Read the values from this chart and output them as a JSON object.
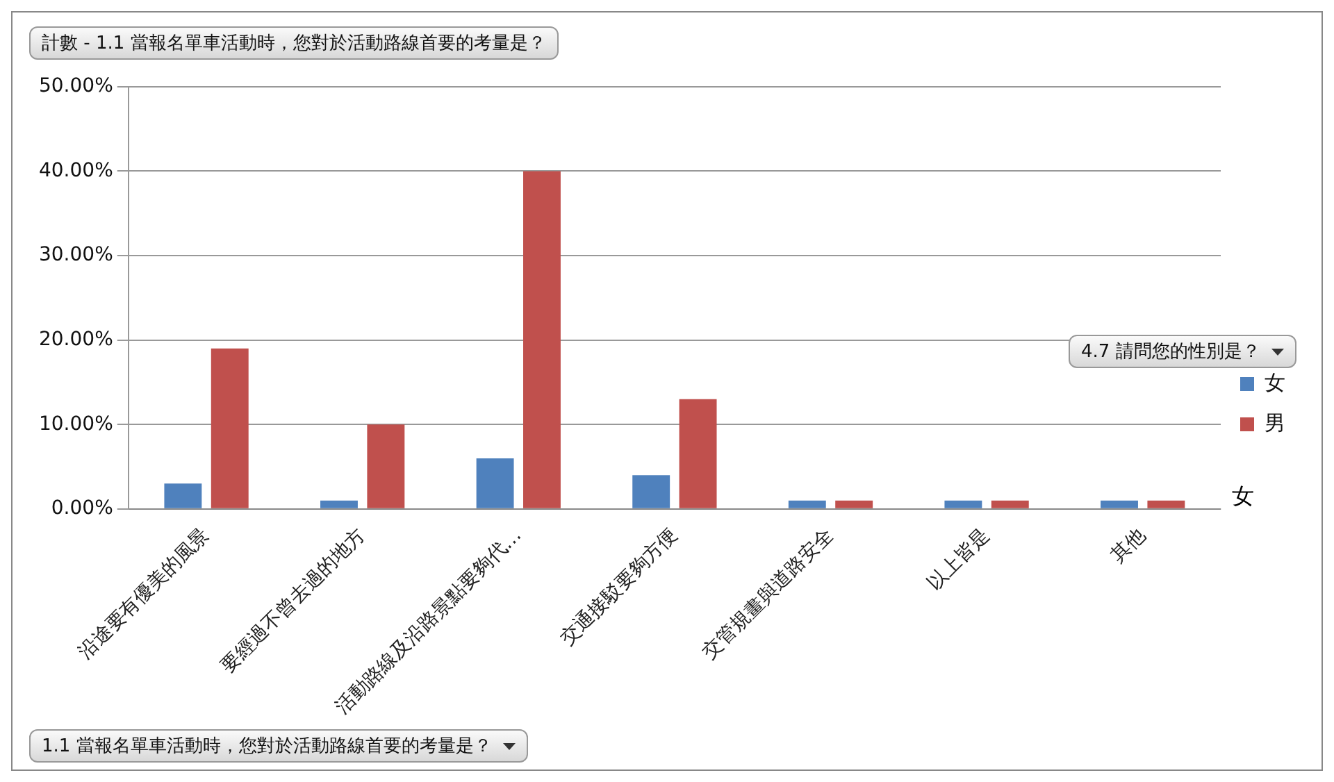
{
  "chart_data": {
    "type": "bar",
    "title": "計數 - 1.1 當報名單車活動時，您對於活動路線首要的考量是？",
    "xlabel": "1.1 當報名單車活動時，您對於活動路線首要的考量是？",
    "legend_title": "4.7 請問您的性別是？",
    "categories": [
      "沿途要有優美的風景",
      "要經過不曾去過的地方",
      "活動路線及沿路景點要夠代…",
      "交通接駁要夠方便",
      "交管規畫與道路安全",
      "以上皆是",
      "其他"
    ],
    "series": [
      {
        "name": "女",
        "color": "#4f81bd",
        "values": [
          3,
          1,
          6,
          4,
          1,
          1,
          1
        ]
      },
      {
        "name": "男",
        "color": "#c0504d",
        "values": [
          19,
          10,
          40,
          13,
          1,
          1,
          1
        ]
      }
    ],
    "ylim": [
      0,
      50
    ],
    "yticks": [
      {
        "value": 0,
        "label": "0.00%"
      },
      {
        "value": 10,
        "label": "10.00%"
      },
      {
        "value": 20,
        "label": "20.00%"
      },
      {
        "value": 30,
        "label": "30.00%"
      },
      {
        "value": 40,
        "label": "40.00%"
      },
      {
        "value": 50,
        "label": "50.00%"
      }
    ],
    "grid": "y",
    "legend": "right",
    "annotations": [
      "女"
    ]
  }
}
